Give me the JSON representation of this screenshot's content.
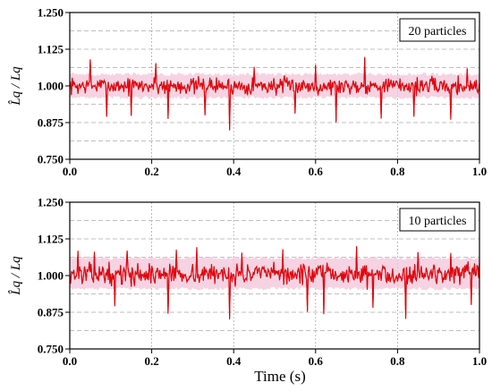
{
  "colors": {
    "trace_main": "#e8000b",
    "trace_dark": "#8b1a00",
    "band": "#f3c4d8",
    "grid": "#aaaaaa"
  },
  "chart_data": [
    {
      "type": "line",
      "legend_text": "20 particles",
      "legend_position": "top-right",
      "ylabel": "L̂q / Lq",
      "xlabel": "",
      "xlim": [
        0,
        1.0
      ],
      "ylim": [
        0.75,
        1.25
      ],
      "x_ticks": [
        "0.0",
        "0.2",
        "0.4",
        "0.6",
        "0.8",
        "1.0"
      ],
      "y_ticks": [
        "0.750",
        "0.875",
        "1.000",
        "1.125",
        "1.250"
      ],
      "grid": true,
      "band": [
        0.96,
        1.04
      ],
      "baseline": 1.0,
      "noise_amplitude": 0.02,
      "n_samples": 500,
      "seed": 7,
      "spikes": [
        {
          "x": 0.05,
          "y": 1.09
        },
        {
          "x": 0.09,
          "y": 0.895
        },
        {
          "x": 0.15,
          "y": 0.9
        },
        {
          "x": 0.21,
          "y": 1.075
        },
        {
          "x": 0.24,
          "y": 0.89
        },
        {
          "x": 0.33,
          "y": 0.9
        },
        {
          "x": 0.39,
          "y": 0.85
        },
        {
          "x": 0.45,
          "y": 1.065
        },
        {
          "x": 0.55,
          "y": 0.905
        },
        {
          "x": 0.6,
          "y": 1.07
        },
        {
          "x": 0.65,
          "y": 0.88
        },
        {
          "x": 0.72,
          "y": 1.095
        },
        {
          "x": 0.76,
          "y": 0.89
        },
        {
          "x": 0.84,
          "y": 0.895
        },
        {
          "x": 0.93,
          "y": 0.885
        },
        {
          "x": 0.97,
          "y": 1.06
        }
      ]
    },
    {
      "type": "line",
      "legend_text": "10 particles",
      "legend_position": "top-right",
      "ylabel": "L̂q / Lq",
      "xlabel": "Time (s)",
      "xlim": [
        0,
        1.0
      ],
      "ylim": [
        0.75,
        1.25
      ],
      "x_ticks": [
        "0.0",
        "0.2",
        "0.4",
        "0.6",
        "0.8",
        "1.0"
      ],
      "y_ticks": [
        "0.750",
        "0.875",
        "1.000",
        "1.125",
        "1.250"
      ],
      "grid": true,
      "band": [
        0.955,
        1.06
      ],
      "baseline": 1.005,
      "noise_amplitude": 0.024,
      "n_samples": 500,
      "seed": 13,
      "spikes": [
        {
          "x": 0.02,
          "y": 1.085
        },
        {
          "x": 0.06,
          "y": 1.08
        },
        {
          "x": 0.11,
          "y": 0.9
        },
        {
          "x": 0.14,
          "y": 1.085
        },
        {
          "x": 0.24,
          "y": 0.87
        },
        {
          "x": 0.26,
          "y": 1.085
        },
        {
          "x": 0.31,
          "y": 1.095
        },
        {
          "x": 0.39,
          "y": 0.855
        },
        {
          "x": 0.42,
          "y": 1.075
        },
        {
          "x": 0.52,
          "y": 1.09
        },
        {
          "x": 0.58,
          "y": 0.88
        },
        {
          "x": 0.62,
          "y": 0.87
        },
        {
          "x": 0.7,
          "y": 1.1
        },
        {
          "x": 0.74,
          "y": 0.89
        },
        {
          "x": 0.82,
          "y": 0.855
        },
        {
          "x": 0.85,
          "y": 1.08
        },
        {
          "x": 0.93,
          "y": 1.075
        },
        {
          "x": 0.98,
          "y": 0.9
        }
      ]
    }
  ]
}
